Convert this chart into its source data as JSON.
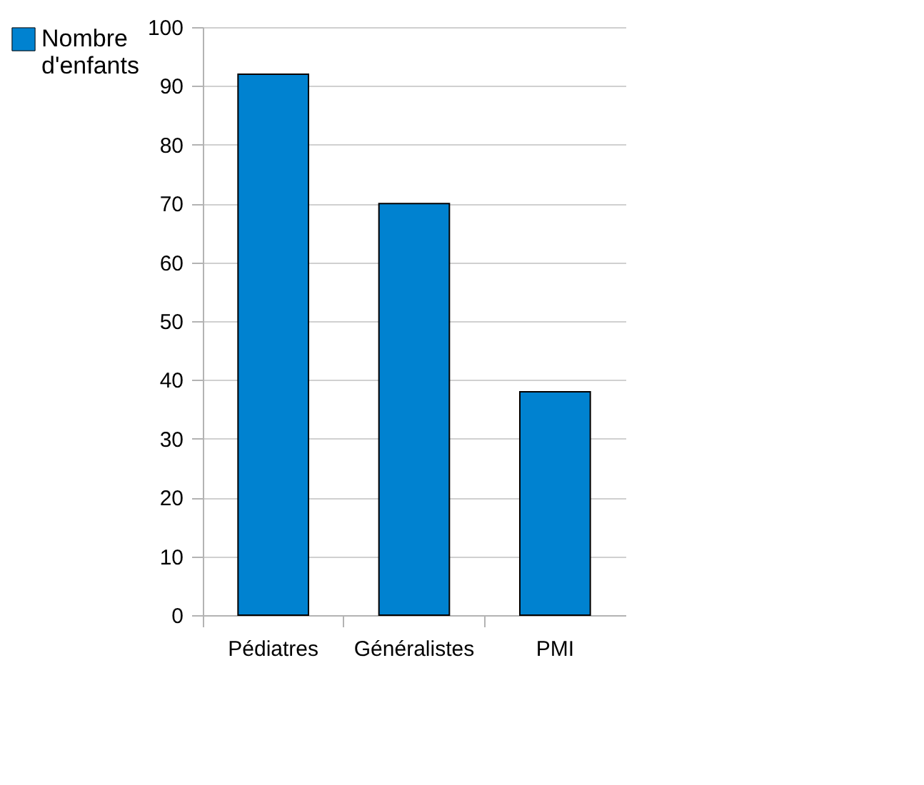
{
  "chart_data": {
    "type": "bar",
    "categories": [
      "Pédiatres",
      "Généralistes",
      "PMI"
    ],
    "series": [
      {
        "name": "Nombre d'enfants",
        "color": "#0082d0",
        "values": [
          92,
          70,
          38
        ]
      }
    ],
    "ylim": [
      0,
      100
    ],
    "yticks": [
      0,
      10,
      20,
      30,
      40,
      50,
      60,
      70,
      80,
      90,
      100
    ],
    "grid": "y",
    "legend": "top left"
  }
}
